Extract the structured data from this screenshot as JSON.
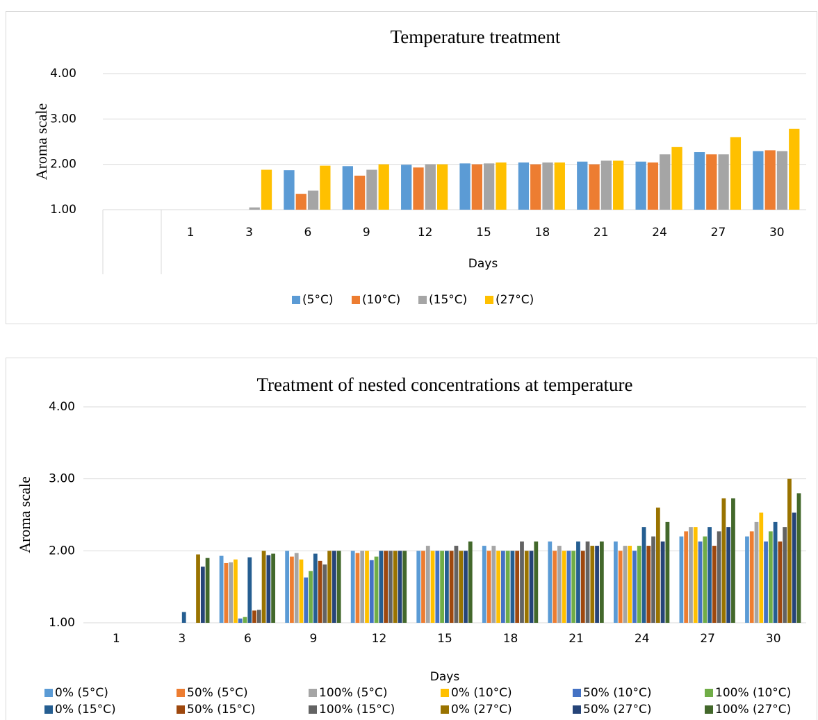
{
  "chart_data": [
    {
      "type": "bar",
      "title": "Temperature treatment",
      "x_label": "Days",
      "y_label": "Aroma scale",
      "categories": [
        "1",
        "3",
        "6",
        "9",
        "12",
        "15",
        "18",
        "21",
        "24",
        "27",
        "30"
      ],
      "ylim": [
        1,
        4
      ],
      "yticks": [
        {
          "value": 1,
          "label": "1.00"
        },
        {
          "value": 2,
          "label": "2.00"
        },
        {
          "value": 3,
          "label": "3.00"
        },
        {
          "value": 4,
          "label": "4.00"
        }
      ],
      "grid": true,
      "legend": "bottom",
      "series": [
        {
          "name": "(5°C)",
          "color": "#5b9bd5",
          "values": [
            1,
            1,
            1.87,
            1.96,
            1.99,
            2.02,
            2.04,
            2.06,
            2.06,
            2.27,
            2.29
          ]
        },
        {
          "name": "(10°C)",
          "color": "#ed7d31",
          "values": [
            1,
            1,
            1.35,
            1.75,
            1.93,
            2.0,
            2.0,
            2.0,
            2.04,
            2.22,
            2.31
          ]
        },
        {
          "name": "(15°C)",
          "color": "#a5a5a5",
          "values": [
            1,
            1.05,
            1.42,
            1.88,
            2.0,
            2.02,
            2.04,
            2.08,
            2.22,
            2.22,
            2.29
          ]
        },
        {
          "name": "(27°C)",
          "color": "#ffc000",
          "values": [
            1,
            1.88,
            1.97,
            2.0,
            2.0,
            2.04,
            2.04,
            2.08,
            2.38,
            2.6,
            2.78
          ]
        }
      ]
    },
    {
      "type": "bar",
      "title": "Treatment of nested concentrations at temperature",
      "x_label": "Days",
      "y_label": "Aroma scale",
      "categories": [
        "1",
        "3",
        "6",
        "9",
        "12",
        "15",
        "18",
        "21",
        "24",
        "27",
        "30"
      ],
      "ylim": [
        1,
        4
      ],
      "yticks": [
        {
          "value": 1,
          "label": "1.00"
        },
        {
          "value": 2,
          "label": "2.00"
        },
        {
          "value": 3,
          "label": "3.00"
        },
        {
          "value": 4,
          "label": "4.00"
        }
      ],
      "grid": true,
      "legend": "bottom",
      "series": [
        {
          "name": "0% (5°C)",
          "color": "#5b9bd5",
          "values": [
            1,
            1,
            1.93,
            2.0,
            2.0,
            2.0,
            2.07,
            2.13,
            2.13,
            2.2,
            2.2
          ]
        },
        {
          "name": "50% (5°C)",
          "color": "#ed7d31",
          "values": [
            1,
            1,
            1.83,
            1.92,
            1.97,
            2.0,
            2.0,
            2.0,
            2.0,
            2.27,
            2.27
          ]
        },
        {
          "name": "100% (5°C)",
          "color": "#a5a5a5",
          "values": [
            1,
            1,
            1.84,
            1.97,
            2.0,
            2.07,
            2.07,
            2.07,
            2.07,
            2.33,
            2.4
          ]
        },
        {
          "name": "0% (10°C)",
          "color": "#ffc000",
          "values": [
            1,
            1,
            1.88,
            1.88,
            2.0,
            2.0,
            2.0,
            2.0,
            2.07,
            2.33,
            2.53
          ]
        },
        {
          "name": "50% (10°C)",
          "color": "#4472c4",
          "values": [
            1,
            1,
            1.06,
            1.63,
            1.87,
            2.0,
            2.0,
            2.0,
            2.0,
            2.13,
            2.13
          ]
        },
        {
          "name": "100% (10°C)",
          "color": "#70ad47",
          "values": [
            1,
            1,
            1.08,
            1.72,
            1.92,
            2.0,
            2.0,
            2.0,
            2.07,
            2.2,
            2.27
          ]
        },
        {
          "name": "0% (15°C)",
          "color": "#255e91",
          "values": [
            1,
            1.15,
            1.91,
            1.96,
            2.0,
            2.0,
            2.0,
            2.13,
            2.33,
            2.33,
            2.4
          ]
        },
        {
          "name": "50% (15°C)",
          "color": "#9e480e",
          "values": [
            1,
            1,
            1.17,
            1.86,
            2.0,
            2.0,
            2.0,
            2.0,
            2.07,
            2.07,
            2.13
          ]
        },
        {
          "name": "100% (15°C)",
          "color": "#636363",
          "values": [
            1,
            1,
            1.18,
            1.81,
            2.0,
            2.07,
            2.13,
            2.13,
            2.2,
            2.27,
            2.33
          ]
        },
        {
          "name": "0% (27°C)",
          "color": "#997300",
          "values": [
            1,
            1.95,
            2.0,
            2.0,
            2.0,
            2.0,
            2.0,
            2.07,
            2.6,
            2.73,
            3.0
          ]
        },
        {
          "name": "50% (27°C)",
          "color": "#264478",
          "values": [
            1,
            1.78,
            1.94,
            2.0,
            2.0,
            2.0,
            2.0,
            2.07,
            2.13,
            2.33,
            2.53
          ]
        },
        {
          "name": "100% (27°C)",
          "color": "#43682b",
          "values": [
            1,
            1.9,
            1.96,
            2.0,
            2.0,
            2.13,
            2.13,
            2.13,
            2.4,
            2.73,
            2.8
          ]
        }
      ]
    }
  ]
}
